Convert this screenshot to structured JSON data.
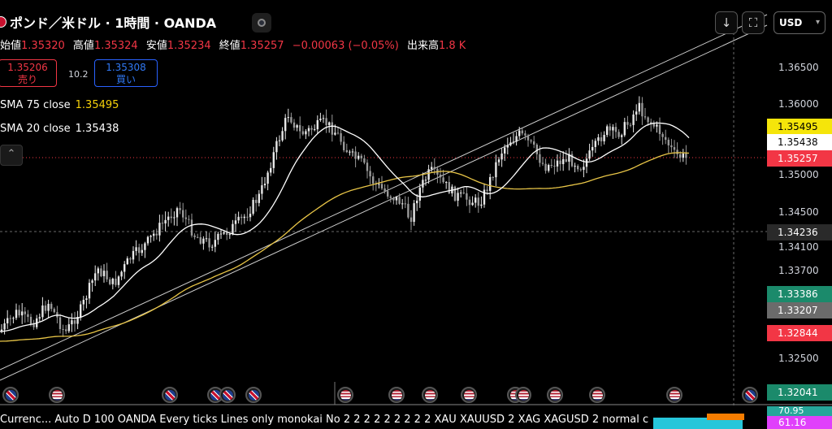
{
  "header": {
    "title": "ポンド／米ドル · 1時間 · OANDA",
    "ohlc": [
      {
        "label": "始値",
        "value": "1.35320"
      },
      {
        "label": "高値",
        "value": "1.35324"
      },
      {
        "label": "安値",
        "value": "1.35234"
      },
      {
        "label": "終値",
        "value": "1.35257"
      }
    ],
    "change": "−0.00063 (−0.05%)",
    "volume_label": "出来高",
    "volume_value": "1.8 K"
  },
  "trade": {
    "sell_price": "1.35206",
    "sell_label": "売り",
    "spread": "10.2",
    "buy_price": "1.35308",
    "buy_label": "買い"
  },
  "indicators": [
    {
      "label": "SMA 75 close",
      "value": "1.35495",
      "color": "#f5d10a"
    },
    {
      "label": "SMA 20 close",
      "value": "1.35438",
      "color": "#ffffff"
    }
  ],
  "toolbar": {
    "download_icon": "download-icon",
    "fullscreen_icon": "fullscreen-icon",
    "currency": "USD",
    "collapse_icon": "chevron-up-icon"
  },
  "axis": {
    "ticks": [
      "1.36500",
      "1.36000",
      "1.35000",
      "1.34500",
      "1.34100",
      "1.33700",
      "1.32500"
    ],
    "badges": [
      {
        "value": "1.35495",
        "bg": "#f5e50a",
        "fg": "#000000"
      },
      {
        "value": "1.35438",
        "bg": "#ffffff",
        "fg": "#000000"
      },
      {
        "value": "1.35257",
        "bg": "#f23645",
        "fg": "#ffffff"
      },
      {
        "value": "1.34236",
        "bg": "#2a2a2a",
        "fg": "#ffffff"
      },
      {
        "value": "1.33386",
        "bg": "#1b8a6b",
        "fg": "#ffffff"
      },
      {
        "value": "1.33207",
        "bg": "#6b6b6b",
        "fg": "#ffffff"
      },
      {
        "value": "1.32844",
        "bg": "#f23645",
        "fg": "#ffffff"
      },
      {
        "value": "1.32041",
        "bg": "#1b8a6b",
        "fg": "#ffffff"
      }
    ],
    "bottom_badge_1": "70.95",
    "bottom_badge_2": "61.16"
  },
  "events": [
    {
      "type": "uk-flag-icon"
    },
    {
      "type": "us-flag-icon"
    },
    {
      "type": "uk-flag-icon"
    },
    {
      "type": "uk-flag-icon"
    },
    {
      "type": "uk-flag-icon"
    },
    {
      "type": "uk-flag-icon"
    },
    {
      "type": "us-flag-icon"
    },
    {
      "type": "us-flag-icon"
    },
    {
      "type": "us-flag-icon"
    },
    {
      "type": "us-flag-icon"
    },
    {
      "type": "us-flag-icon"
    },
    {
      "type": "us-flag-icon"
    },
    {
      "type": "us-flag-icon"
    },
    {
      "type": "us-flag-icon"
    },
    {
      "type": "us-flag-icon"
    },
    {
      "type": "uk-flag-icon"
    }
  ],
  "status_bar": {
    "text": "Currenc...  Auto D 100 OANDA Every ticks Lines only monokai No 2 2 2 2 2 2 2 2 2 XAU XAUUSD 2 XAG XAGUSD 2 normal c"
  },
  "chart_data": {
    "type": "candlestick",
    "instrument": "ポンド／米ドル",
    "interval": "1時間",
    "ylim": [
      1.32,
      1.368
    ],
    "series": [
      {
        "name": "SMA 75 close",
        "last": 1.35495
      },
      {
        "name": "SMA 20 close",
        "last": 1.35438
      }
    ],
    "last_close": 1.35257,
    "crosshair_price": 1.34236
  }
}
